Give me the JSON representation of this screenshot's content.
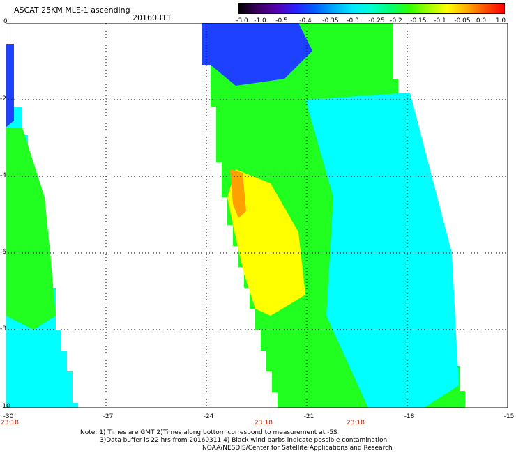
{
  "header": {
    "title": "ASCAT 25KM MLE-1 ascending",
    "date": "20160311"
  },
  "colorbar": {
    "ticks": [
      "-3.0",
      "-1.0",
      "-0.5",
      "-0.4",
      "-0.35",
      "-0.3",
      "-0.25",
      "-0.2",
      "-0.15",
      "-0.1",
      "-0.05",
      "0.0",
      "1.0"
    ],
    "colors": [
      "#000000",
      "#3b0060",
      "#5500b0",
      "#2a20ff",
      "#0060ff",
      "#00a8ff",
      "#00e8ff",
      "#00ffd0",
      "#00ff70",
      "#30ff00",
      "#a0ff00",
      "#ffff00",
      "#ffb000",
      "#ff5000",
      "#ff0000"
    ]
  },
  "map": {
    "y_labels": [
      "0",
      "-2",
      "-4",
      "-6",
      "-8",
      "-10"
    ],
    "x_labels": [
      "-30",
      "-27",
      "-24",
      "-21",
      "-18",
      "-15"
    ],
    "time_labels": [
      "23:18",
      "23:18",
      "23:18"
    ],
    "colors": {
      "blue": "#1e40ff",
      "cyan": "#00ffff",
      "green": "#20ff20",
      "yellow": "#ffff00",
      "orange": "#ffa000"
    }
  },
  "notes": {
    "line1": "Note: 1) Times are GMT 2)Times along bottom correspond to measurement at -5S",
    "line2": "3)Data buffer is 22 hrs from 20160311 4) Black wind barbs indicate possible contamination",
    "line3": "NOAA/NESDIS/Center for Satellite Applications and Research"
  }
}
